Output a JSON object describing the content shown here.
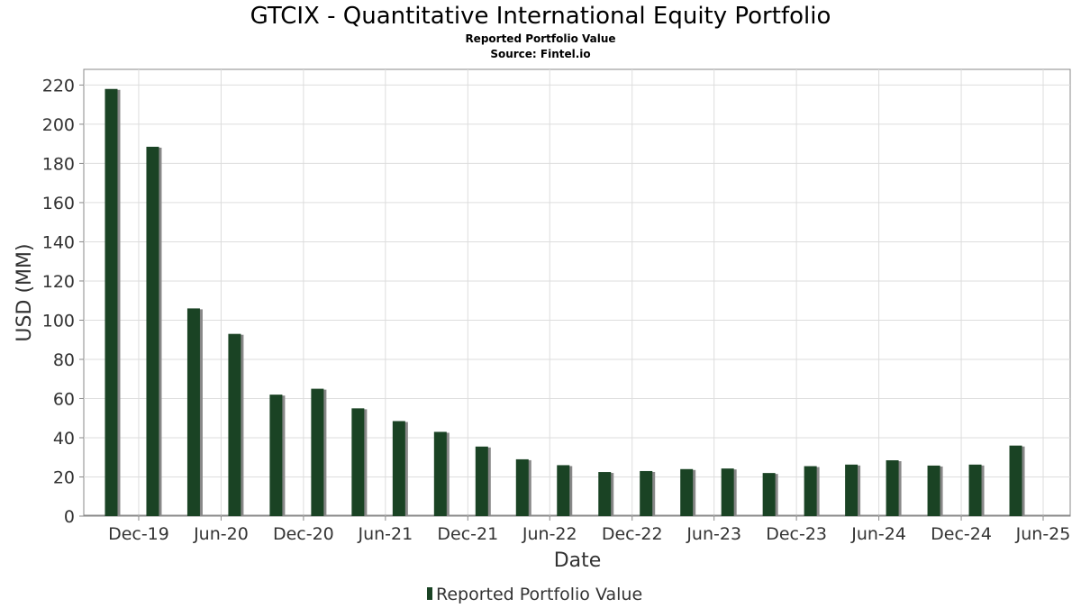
{
  "chart_data": {
    "type": "bar",
    "title": "GTCIX - Quantitative International Equity Portfolio",
    "subtitle": "Reported Portfolio Value",
    "source": "Source: Fintel.io",
    "xlabel": "Date",
    "ylabel": "USD (MM)",
    "ylim": [
      0,
      228
    ],
    "yticks": [
      0,
      20,
      40,
      60,
      80,
      100,
      120,
      140,
      160,
      180,
      200,
      220
    ],
    "x_start": "2019-08-01",
    "x_end": "2025-07-31",
    "xticks": [
      {
        "label": "Dec-19",
        "date": "2019-12-01"
      },
      {
        "label": "Jun-20",
        "date": "2020-06-01"
      },
      {
        "label": "Dec-20",
        "date": "2020-12-01"
      },
      {
        "label": "Jun-21",
        "date": "2021-06-01"
      },
      {
        "label": "Dec-21",
        "date": "2021-12-01"
      },
      {
        "label": "Jun-22",
        "date": "2022-06-01"
      },
      {
        "label": "Dec-22",
        "date": "2022-12-01"
      },
      {
        "label": "Jun-23",
        "date": "2023-06-01"
      },
      {
        "label": "Dec-23",
        "date": "2023-12-01"
      },
      {
        "label": "Jun-24",
        "date": "2024-06-01"
      },
      {
        "label": "Dec-24",
        "date": "2024-12-01"
      },
      {
        "label": "Jun-25",
        "date": "2025-06-01"
      }
    ],
    "grid": true,
    "legend_position": "bottom-center",
    "series": [
      {
        "name": "Reported Portfolio Value",
        "color": "#1a4324",
        "shadow_color": "#888888",
        "points": [
          {
            "date": "2019-10-01",
            "value": 218
          },
          {
            "date": "2020-01-01",
            "value": 188.5
          },
          {
            "date": "2020-04-01",
            "value": 106
          },
          {
            "date": "2020-07-01",
            "value": 93
          },
          {
            "date": "2020-10-01",
            "value": 62
          },
          {
            "date": "2021-01-01",
            "value": 65
          },
          {
            "date": "2021-04-01",
            "value": 55
          },
          {
            "date": "2021-07-01",
            "value": 48.5
          },
          {
            "date": "2021-10-01",
            "value": 43
          },
          {
            "date": "2022-01-01",
            "value": 35.5
          },
          {
            "date": "2022-04-01",
            "value": 29
          },
          {
            "date": "2022-07-01",
            "value": 26
          },
          {
            "date": "2022-10-01",
            "value": 22.5
          },
          {
            "date": "2023-01-01",
            "value": 23
          },
          {
            "date": "2023-04-01",
            "value": 24
          },
          {
            "date": "2023-07-01",
            "value": 24.3
          },
          {
            "date": "2023-10-01",
            "value": 22
          },
          {
            "date": "2024-01-01",
            "value": 25.5
          },
          {
            "date": "2024-04-01",
            "value": 26.3
          },
          {
            "date": "2024-07-01",
            "value": 28.5
          },
          {
            "date": "2024-10-01",
            "value": 25.8
          },
          {
            "date": "2025-01-01",
            "value": 26.3
          },
          {
            "date": "2025-04-01",
            "value": 36
          }
        ]
      }
    ]
  }
}
